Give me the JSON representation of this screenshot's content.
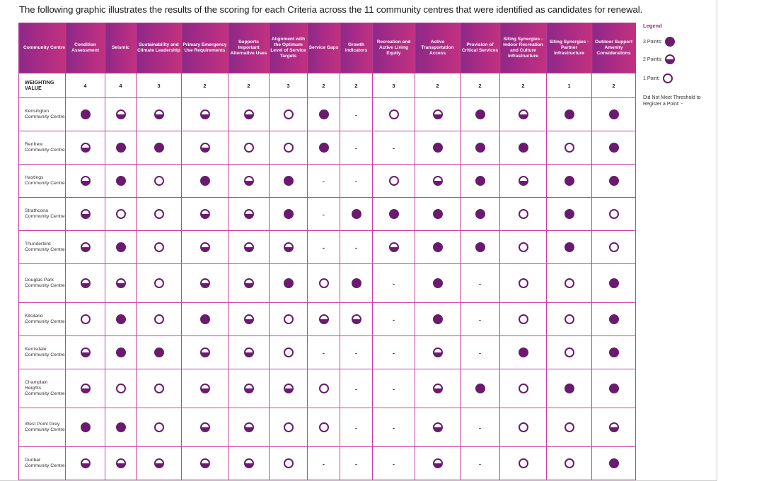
{
  "intro": "The following graphic illustrates the results of the scoring for each Criteria across the 11 community centres that were identified as candidates for renewal.",
  "first_col_header": "Community Centre",
  "criteria": [
    "Condition Assessment",
    "Seismic",
    "Sustainability and Climate Leadership",
    "Primary Emergency Use Requirements",
    "Supports Important Alternative Uses",
    "Alignment with the Optimum Level of Service Targets",
    "Service Gaps",
    "Growth Indicators",
    "Recreation and Active Living Equity",
    "Active Transportation Access",
    "Provision of Critical Services",
    "Siting Synergies - Indoor Recreation and Culture Infrastructure",
    "Siting Synergies - Partner Infrastructure",
    "Outdoor Support Amenity Considerations"
  ],
  "weighting_label": "WEIGHTING VALUE",
  "weights": [
    "4",
    "4",
    "3",
    "2",
    "2",
    "3",
    "2",
    "2",
    "3",
    "2",
    "2",
    "2",
    "1",
    "2"
  ],
  "centres": [
    {
      "name": "Kensington Community Centre",
      "scores": [
        3,
        2,
        2,
        2,
        2,
        1,
        3,
        0,
        1,
        2,
        3,
        2,
        3,
        3
      ]
    },
    {
      "name": "Renfrew Community Centre",
      "scores": [
        2,
        3,
        3,
        2,
        1,
        1,
        3,
        0,
        0,
        3,
        3,
        3,
        1,
        3
      ]
    },
    {
      "name": "Hastings Community Centre",
      "scores": [
        2,
        3,
        1,
        3,
        2,
        3,
        0,
        0,
        1,
        2,
        3,
        2,
        3,
        3
      ]
    },
    {
      "name": "Strathcona Community Centre",
      "scores": [
        2,
        1,
        1,
        2,
        2,
        3,
        0,
        3,
        3,
        3,
        3,
        1,
        3,
        1
      ]
    },
    {
      "name": "Thunderbird Community Centre",
      "scores": [
        2,
        3,
        1,
        2,
        2,
        2,
        0,
        0,
        2,
        3,
        3,
        1,
        3,
        1
      ]
    },
    {
      "name": "Douglas Park Community Centre",
      "scores": [
        2,
        2,
        1,
        2,
        2,
        3,
        1,
        3,
        0,
        3,
        0,
        1,
        1,
        3
      ]
    },
    {
      "name": "Kitsilano Community Centre",
      "scores": [
        1,
        3,
        1,
        3,
        2,
        1,
        2,
        2,
        0,
        3,
        0,
        1,
        1,
        3
      ]
    },
    {
      "name": "Kerrisdale Community Centre",
      "scores": [
        2,
        3,
        3,
        2,
        2,
        1,
        0,
        0,
        0,
        2,
        0,
        3,
        1,
        3
      ]
    },
    {
      "name": "Champlain Heights Community Centre",
      "scores": [
        2,
        1,
        1,
        2,
        2,
        2,
        1,
        0,
        0,
        2,
        3,
        1,
        3,
        3
      ]
    },
    {
      "name": "West Point Grey Community Centre",
      "scores": [
        3,
        3,
        1,
        2,
        2,
        1,
        1,
        0,
        0,
        2,
        0,
        1,
        1,
        2
      ]
    },
    {
      "name": "Dunbar Community Centre",
      "scores": [
        2,
        2,
        2,
        2,
        2,
        1,
        0,
        0,
        0,
        2,
        0,
        1,
        1,
        3
      ]
    }
  ],
  "dash_symbol": "-",
  "legend": {
    "title": "Legend",
    "three": "3 Points:",
    "two": "2 Points:",
    "one": "1 Point:",
    "none": "Did Not Meet Threshold to Register a Point: -"
  },
  "colors": {
    "accent": "#8c2a86",
    "dot": "#6a1b6e",
    "border": "#c93ea5"
  }
}
